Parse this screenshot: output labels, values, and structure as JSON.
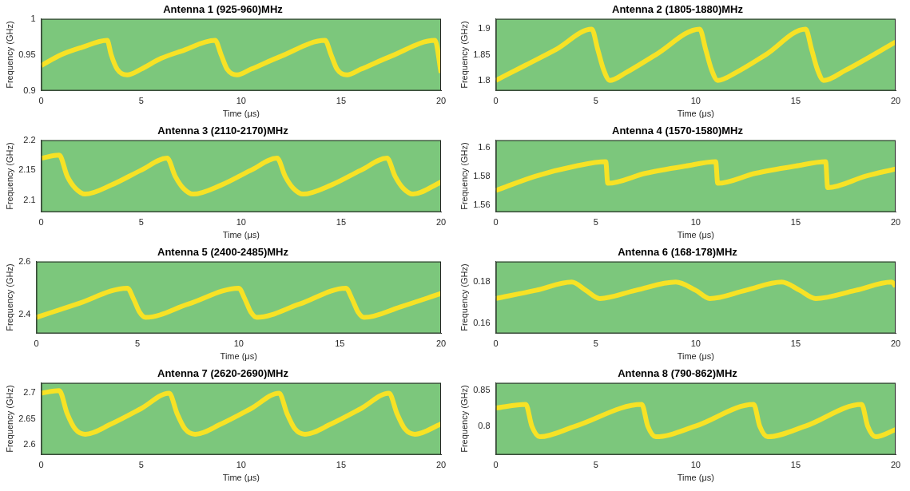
{
  "chart_data": [
    {
      "type": "line",
      "title": "Antenna 1 (925-960)MHz",
      "x_label": "Time (μs)",
      "y_label": "Frequency (GHz)",
      "color": "#f7e225",
      "x": [
        0,
        1,
        2,
        3.3,
        3.5,
        3.8,
        4.3,
        5,
        6,
        7,
        8.7,
        9,
        9.3,
        9.8,
        10.5,
        12,
        14.2,
        14.5,
        14.8,
        15.3,
        16,
        17.5,
        19.7,
        20
      ],
      "values": [
        0.935,
        0.95,
        0.96,
        0.97,
        0.95,
        0.93,
        0.922,
        0.93,
        0.945,
        0.955,
        0.97,
        0.95,
        0.93,
        0.922,
        0.93,
        0.948,
        0.97,
        0.95,
        0.93,
        0.922,
        0.93,
        0.948,
        0.97,
        0.925
      ],
      "xlim": [
        0,
        20
      ],
      "xticks": [
        0,
        5,
        10,
        15,
        20
      ],
      "ylim": [
        0.9,
        1
      ],
      "yticks": [
        0.9,
        0.95,
        1
      ]
    },
    {
      "type": "line",
      "title": "Antenna 2 (1805-1880)MHz",
      "x_label": "Time (μs)",
      "y_label": "Frequency (GHz)",
      "color": "#f7e225",
      "x": [
        0,
        1.5,
        3,
        4.8,
        5.1,
        5.4,
        5.7,
        6.5,
        8,
        10.2,
        10.5,
        10.8,
        11.1,
        12,
        13.5,
        15.5,
        15.8,
        16.1,
        16.4,
        17.5,
        20
      ],
      "values": [
        1.8,
        1.83,
        1.86,
        1.9,
        1.86,
        1.82,
        1.8,
        1.815,
        1.85,
        1.9,
        1.86,
        1.82,
        1.8,
        1.815,
        1.85,
        1.9,
        1.86,
        1.82,
        1.8,
        1.82,
        1.875
      ],
      "xlim": [
        0,
        20
      ],
      "xticks": [
        0,
        5,
        10,
        15,
        20
      ],
      "ylim": [
        1.78,
        1.92
      ],
      "yticks": [
        1.8,
        1.85,
        1.9
      ]
    },
    {
      "type": "line",
      "title": "Antenna 3 (2110-2170)MHz",
      "x_label": "Time (μs)",
      "y_label": "Frequency (GHz)",
      "color": "#f7e225",
      "x": [
        0,
        0.9,
        1.3,
        1.7,
        2.2,
        3.5,
        5,
        6.3,
        6.7,
        7.1,
        7.6,
        9,
        10.5,
        11.8,
        12.2,
        12.6,
        13.1,
        14.5,
        16,
        17.3,
        17.7,
        18.1,
        18.6,
        20
      ],
      "values": [
        2.17,
        2.175,
        2.14,
        2.12,
        2.11,
        2.125,
        2.15,
        2.17,
        2.14,
        2.12,
        2.11,
        2.125,
        2.15,
        2.17,
        2.14,
        2.12,
        2.11,
        2.125,
        2.15,
        2.17,
        2.14,
        2.12,
        2.11,
        2.13
      ],
      "xlim": [
        0,
        20
      ],
      "xticks": [
        0,
        5,
        10,
        15,
        20
      ],
      "ylim": [
        2.08,
        2.2
      ],
      "yticks": [
        2.1,
        2.15,
        2.2
      ]
    },
    {
      "type": "line",
      "title": "Antenna 4 (1570-1580)MHz",
      "x_label": "Time (μs)",
      "y_label": "Frequency (GHz)",
      "color": "#f7e225",
      "x": [
        0,
        2,
        4,
        5.5,
        5.6,
        7.5,
        9.5,
        11,
        11.1,
        13,
        15,
        16.5,
        16.6,
        18.5,
        20
      ],
      "values": [
        1.57,
        1.58,
        1.587,
        1.59,
        1.575,
        1.582,
        1.587,
        1.59,
        1.575,
        1.582,
        1.587,
        1.59,
        1.572,
        1.58,
        1.585
      ],
      "xlim": [
        0,
        20
      ],
      "xticks": [
        0,
        5,
        10,
        15,
        20
      ],
      "ylim": [
        1.555,
        1.605
      ],
      "yticks": [
        1.56,
        1.58,
        1.6
      ]
    },
    {
      "type": "line",
      "title": "Antenna 5 (2400-2485)MHz",
      "x_label": "Time (μs)",
      "y_label": "Frequency (GHz)",
      "color": "#f7e225",
      "x": [
        0,
        2,
        4.5,
        4.8,
        5.1,
        5.4,
        7.5,
        10,
        10.3,
        10.6,
        10.9,
        13,
        15.3,
        15.6,
        15.9,
        16.2,
        18,
        20
      ],
      "values": [
        2.39,
        2.44,
        2.5,
        2.46,
        2.41,
        2.39,
        2.44,
        2.5,
        2.46,
        2.41,
        2.39,
        2.44,
        2.5,
        2.46,
        2.41,
        2.39,
        2.43,
        2.48
      ],
      "xlim": [
        0,
        20
      ],
      "xticks": [
        0,
        5,
        10,
        15,
        20
      ],
      "ylim": [
        2.33,
        2.6
      ],
      "yticks": [
        2.4,
        2.6
      ]
    },
    {
      "type": "line",
      "title": "Antenna 6 (168-178)MHz",
      "x_label": "Time (μs)",
      "y_label": "Frequency (GHz)",
      "color": "#f7e225",
      "x": [
        0,
        2,
        3.8,
        4.5,
        5.2,
        7,
        9,
        10,
        10.7,
        12.5,
        14.3,
        15.2,
        16,
        18,
        19.8,
        20
      ],
      "values": [
        0.172,
        0.176,
        0.18,
        0.176,
        0.172,
        0.176,
        0.18,
        0.176,
        0.172,
        0.176,
        0.18,
        0.176,
        0.172,
        0.176,
        0.18,
        0.178
      ],
      "xlim": [
        0,
        20
      ],
      "xticks": [
        0,
        5,
        10,
        15,
        20
      ],
      "ylim": [
        0.155,
        0.19
      ],
      "yticks": [
        0.16,
        0.18
      ]
    },
    {
      "type": "line",
      "title": "Antenna 7 (2620-2690)MHz",
      "x_label": "Time (μs)",
      "y_label": "Frequency (GHz)",
      "color": "#f7e225",
      "x": [
        0,
        0.9,
        1.3,
        1.7,
        2.2,
        3.5,
        5,
        6.4,
        6.8,
        7.2,
        7.7,
        9,
        10.5,
        11.9,
        12.3,
        12.7,
        13.2,
        14.5,
        16,
        17.4,
        17.8,
        18.2,
        18.7,
        20
      ],
      "values": [
        2.7,
        2.705,
        2.66,
        2.63,
        2.62,
        2.64,
        2.67,
        2.7,
        2.66,
        2.63,
        2.62,
        2.64,
        2.67,
        2.7,
        2.66,
        2.63,
        2.62,
        2.64,
        2.67,
        2.7,
        2.66,
        2.63,
        2.62,
        2.64
      ],
      "xlim": [
        0,
        20
      ],
      "xticks": [
        0,
        5,
        10,
        15,
        20
      ],
      "ylim": [
        2.58,
        2.72
      ],
      "yticks": [
        2.6,
        2.65,
        2.7
      ]
    },
    {
      "type": "line",
      "title": "Antenna 8 (790-862)MHz",
      "x_label": "Time (μs)",
      "y_label": "Frequency (GHz)",
      "color": "#f7e225",
      "x": [
        0,
        1.5,
        1.8,
        2.2,
        4,
        7.3,
        7.6,
        8,
        10,
        12.9,
        13.2,
        13.6,
        15.5,
        18.3,
        18.6,
        19,
        20
      ],
      "values": [
        0.825,
        0.83,
        0.8,
        0.785,
        0.8,
        0.83,
        0.8,
        0.785,
        0.8,
        0.83,
        0.8,
        0.785,
        0.8,
        0.83,
        0.8,
        0.785,
        0.795
      ],
      "xlim": [
        0,
        20
      ],
      "xticks": [
        0,
        5,
        10,
        15,
        20
      ],
      "ylim": [
        0.76,
        0.86
      ],
      "yticks": [
        0.8,
        0.85
      ]
    }
  ]
}
